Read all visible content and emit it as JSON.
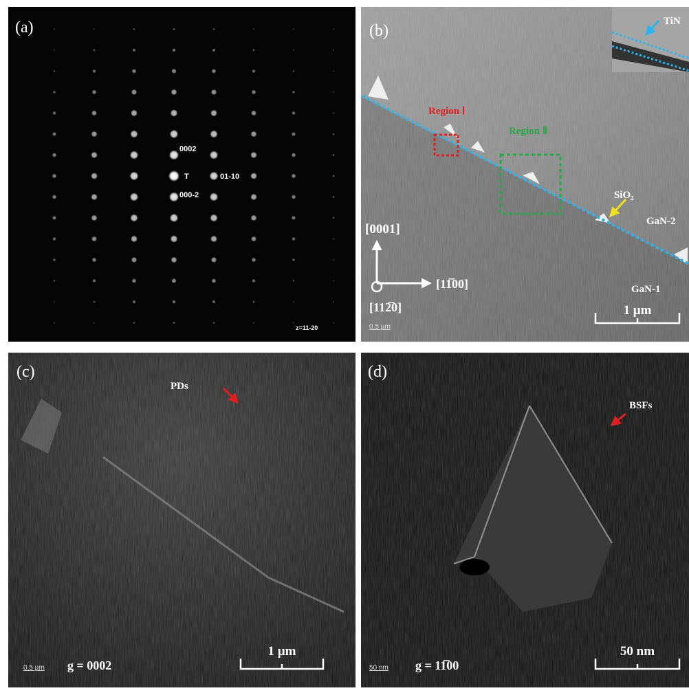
{
  "panel_a": {
    "label": "(a)",
    "spot_labels": [
      "0002",
      "T",
      "01-10",
      "000-2"
    ],
    "zone": "z=11-20"
  },
  "panel_b": {
    "label": "(b)",
    "inset_label": "TiN",
    "region_1": "Region Ⅰ",
    "region_2": "Region Ⅱ",
    "sio2": "SiO₂",
    "gan_2": "GaN-2",
    "gan_1": "GaN-1",
    "dir_up": "[0001]",
    "dir_right": "[11̅00]",
    "dir_out": "[112̅0]",
    "small_scale": "0.5 µm",
    "scale": "1 µm"
  },
  "panel_c": {
    "label": "(c)",
    "arrow_label": "PDs",
    "small_scale": "0.5 µm",
    "g_vector": "g = 0002",
    "scale": "1 µm"
  },
  "panel_d": {
    "label": "(d)",
    "arrow_label": "BSFs",
    "small_scale": "50 nm",
    "g_vector": "g = 11̅00",
    "scale": "50 nm"
  }
}
